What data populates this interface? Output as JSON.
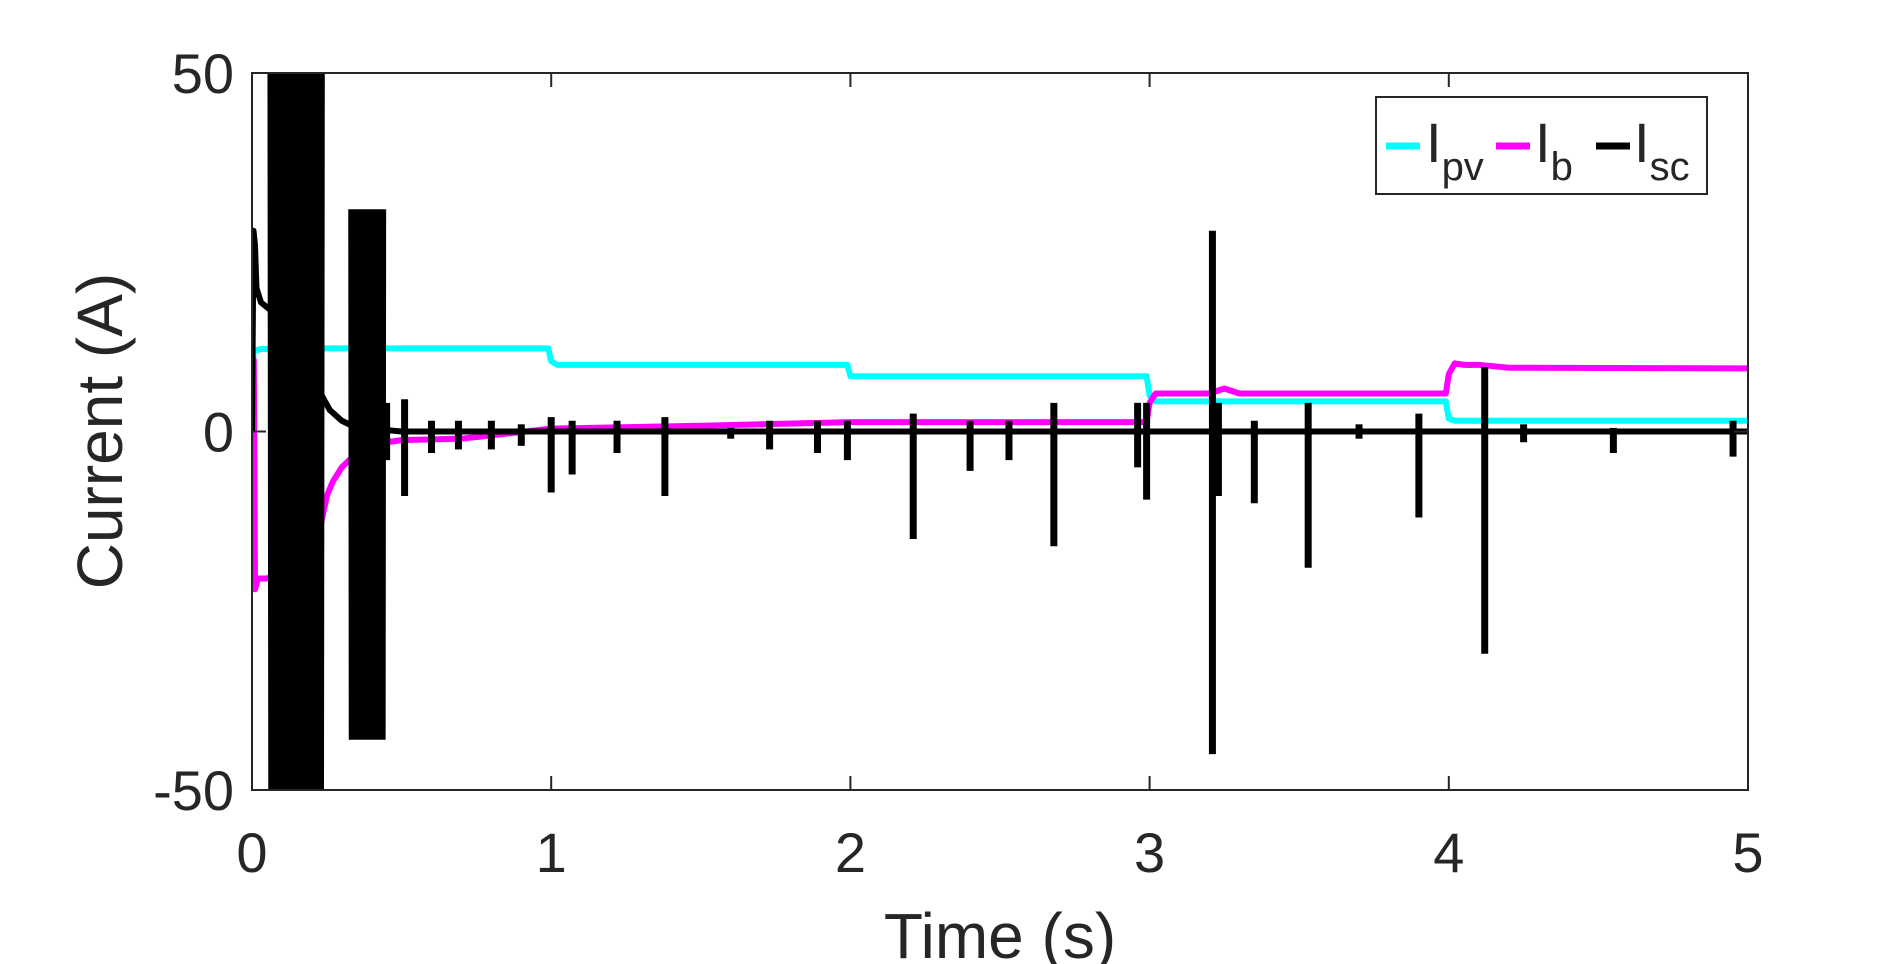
{
  "chart_data": {
    "type": "line",
    "title": "",
    "xlabel": "Time (s)",
    "ylabel": "Current (A)",
    "xlim": [
      0,
      5
    ],
    "ylim": [
      -50,
      50
    ],
    "xticks": [
      0,
      1,
      2,
      3,
      4,
      5
    ],
    "yticks": [
      -50,
      0,
      50
    ],
    "xtick_labels": [
      "0",
      "1",
      "2",
      "3",
      "4",
      "5"
    ],
    "ytick_labels": [
      "-50",
      "0",
      "50"
    ],
    "grid": false,
    "legend_position": "top-right",
    "legend_orientation": "horizontal",
    "series": [
      {
        "name": "I_pv",
        "label_main": "I",
        "label_sub": "pv",
        "color": "#00FFFF",
        "x": [
          0,
          0.005,
          0.01,
          0.03,
          0.06,
          0.15,
          0.3,
          0.5,
          0.99,
          1.0,
          1.02,
          1.5,
          1.99,
          2.0,
          2.02,
          2.5,
          2.99,
          3.0,
          3.02,
          3.5,
          3.99,
          4.0,
          4.02,
          4.5,
          5.0
        ],
        "y": [
          0,
          11.0,
          11.3,
          11.5,
          11.5,
          11.6,
          11.6,
          11.6,
          11.6,
          9.8,
          9.3,
          9.3,
          9.3,
          7.7,
          7.7,
          7.7,
          7.7,
          5.0,
          4.2,
          4.2,
          4.2,
          1.8,
          1.5,
          1.5,
          1.5
        ]
      },
      {
        "name": "I_b",
        "label_main": "I",
        "label_sub": "b",
        "color": "#FF00FF",
        "x": [
          0,
          0.003,
          0.006,
          0.01,
          0.02,
          0.05,
          0.1,
          0.2,
          0.25,
          0.27,
          0.3,
          0.35,
          0.4,
          0.45,
          0.5,
          0.7,
          1.0,
          1.5,
          2.0,
          2.5,
          2.99,
          3.0,
          3.02,
          3.1,
          3.2,
          3.25,
          3.3,
          3.5,
          3.99,
          4.0,
          4.02,
          4.05,
          4.1,
          4.2,
          5.0
        ],
        "y": [
          0,
          10.0,
          10.0,
          -22.0,
          -20.5,
          -20.5,
          -19.5,
          -19.0,
          -9.0,
          -7.0,
          -5.0,
          -3.0,
          -2.0,
          -1.5,
          -1.2,
          -1.0,
          0.4,
          0.8,
          1.3,
          1.3,
          1.3,
          4.0,
          5.3,
          5.3,
          5.3,
          6.0,
          5.3,
          5.3,
          5.3,
          8.0,
          9.5,
          9.3,
          9.3,
          8.9,
          8.8
        ]
      },
      {
        "name": "I_sc",
        "label_main": "I",
        "label_sub": "sc",
        "color": "#000000",
        "steady": [
          [
            0,
            0
          ],
          [
            0.005,
            28.0
          ],
          [
            0.01,
            26.0
          ],
          [
            0.015,
            20.0
          ],
          [
            0.03,
            18.0
          ],
          [
            0.06,
            17.0
          ],
          [
            0.08,
            16.5
          ],
          [
            0.22,
            6.0
          ],
          [
            0.26,
            3.0
          ],
          [
            0.3,
            1.5
          ],
          [
            0.35,
            0.5
          ],
          [
            0.45,
            0.2
          ],
          [
            0.5,
            0.0
          ],
          [
            5.0,
            0.0
          ]
        ],
        "bursts": [
          {
            "t": 0.06,
            "dt": 0.175,
            "hi": 50,
            "lo": -50
          },
          {
            "t": 0.33,
            "dt": 0.11,
            "hi": 31,
            "lo": -43
          }
        ],
        "spikes": [
          [
            0.45,
            4.0,
            -4.0
          ],
          [
            0.51,
            4.5,
            -9.0
          ],
          [
            0.6,
            1.5,
            -3.0
          ],
          [
            0.69,
            1.5,
            -2.5
          ],
          [
            0.8,
            1.5,
            -2.5
          ],
          [
            0.9,
            1.0,
            -2.0
          ],
          [
            1.0,
            2.0,
            -8.5
          ],
          [
            1.07,
            1.5,
            -6.0
          ],
          [
            1.22,
            1.5,
            -3.0
          ],
          [
            1.38,
            2.0,
            -9.0
          ],
          [
            1.6,
            0.5,
            -1.0
          ],
          [
            1.73,
            1.5,
            -2.5
          ],
          [
            1.89,
            1.5,
            -3.0
          ],
          [
            1.99,
            1.5,
            -4.0
          ],
          [
            2.21,
            2.5,
            -15.0
          ],
          [
            2.4,
            1.5,
            -5.5
          ],
          [
            2.53,
            1.5,
            -4.0
          ],
          [
            2.68,
            4.0,
            -16.0
          ],
          [
            2.96,
            4.0,
            -5.0
          ],
          [
            2.99,
            4.0,
            -9.5
          ],
          [
            3.21,
            28.0,
            -45.0
          ],
          [
            3.23,
            4.0,
            -9.0
          ],
          [
            3.35,
            1.5,
            -10.0
          ],
          [
            3.53,
            4.0,
            -19.0
          ],
          [
            3.7,
            1.0,
            -1.0
          ],
          [
            3.9,
            2.5,
            -12.0
          ],
          [
            4.12,
            9.0,
            -31.0
          ],
          [
            4.25,
            1.0,
            -1.5
          ],
          [
            4.55,
            0.5,
            -3.0
          ],
          [
            4.95,
            1.5,
            -3.5
          ]
        ]
      }
    ]
  }
}
